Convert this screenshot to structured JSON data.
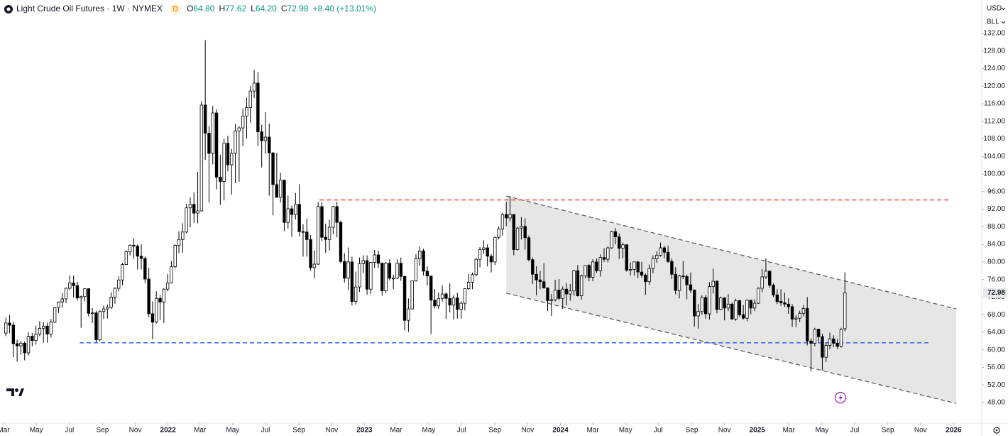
{
  "chart_data": {
    "type": "candlestick",
    "title": "Light Crude Oil Futures · 1W · NYMEX",
    "badge": "D",
    "ohlc": [
      {
        "key": "O",
        "value": "64.80"
      },
      {
        "key": "H",
        "value": "77.62"
      },
      {
        "key": "L",
        "value": "64.20"
      },
      {
        "key": "C",
        "value": "72.98"
      }
    ],
    "change": "+8.40 (+13.01%)",
    "currency": "USD",
    "unit": "BLL",
    "up_color": "#ffffff",
    "down_color": "#000000",
    "wick_color": "#000000",
    "open": [
      63.8,
      66.1,
      65.6,
      61.4,
      60.9,
      61.5,
      59.3,
      63.1,
      62.1,
      63.6,
      64.9,
      65.4,
      63.6,
      66.3,
      69.6,
      70.9,
      71.6,
      74.0,
      75.2,
      74.6,
      71.8,
      72.1,
      73.9,
      68.3,
      68.4,
      62.3,
      68.7,
      69.3,
      69.7,
      72.0,
      74.0,
      75.9,
      79.4,
      82.3,
      83.8,
      83.6,
      81.3,
      80.8,
      76.1,
      68.2,
      66.3,
      71.7,
      70.9,
      73.8,
      75.2,
      78.9,
      83.8,
      85.1,
      86.8,
      92.3,
      93.1,
      91.1,
      91.6,
      115.7,
      109.3,
      104.7,
      113.9,
      99.3,
      98.3,
      107.0,
      102.1,
      104.7,
      109.8,
      110.5,
      113.2,
      115.1,
      118.9,
      120.7,
      109.6,
      107.6,
      108.4,
      104.8,
      97.6,
      94.7,
      98.6,
      89.0,
      92.1,
      90.8,
      93.1,
      86.9,
      86.8,
      85.1,
      78.7,
      79.5,
      92.6,
      85.6,
      85.1,
      87.9,
      92.6,
      89.0,
      80.1,
      76.3,
      80.0,
      71.0,
      74.3,
      79.6,
      80.3,
      73.8,
      79.9,
      81.6,
      79.7,
      73.4,
      79.7,
      76.3,
      76.3,
      79.7,
      76.7,
      66.7,
      69.3,
      75.7,
      80.7,
      82.5,
      77.9,
      76.8,
      71.3,
      70.0,
      71.7,
      72.7,
      71.7,
      70.2,
      71.8,
      69.2,
      70.6,
      73.9,
      75.4,
      77.1,
      80.6,
      82.8,
      83.2,
      81.3,
      80.0,
      85.6,
      87.5,
      90.8,
      90.0,
      90.8,
      82.8,
      87.7,
      88.1,
      85.5,
      80.5,
      77.2,
      75.9,
      75.5,
      74.1,
      71.2,
      71.4,
      73.6,
      71.7,
      73.8,
      72.7,
      73.4,
      78.0,
      72.3,
      76.8,
      79.2,
      76.5,
      80.0,
      78.0,
      81.0,
      80.6,
      83.2,
      86.9,
      85.7,
      83.1,
      83.9,
      78.1,
      78.3,
      80.0,
      77.7,
      77.0,
      75.5,
      78.5,
      80.7,
      81.5,
      83.2,
      82.2,
      80.1,
      77.2,
      73.5,
      76.8,
      76.7,
      74.8,
      73.6,
      67.7,
      68.7,
      71.9,
      68.2,
      74.4,
      75.6,
      69.2,
      71.8,
      69.5,
      70.4,
      67.0,
      71.2,
      68.0,
      67.2,
      71.3,
      69.5,
      70.6,
      74.0,
      76.6,
      77.9,
      74.7,
      72.5,
      71.0,
      70.7,
      70.4,
      69.8,
      67.0,
      67.2,
      68.3,
      69.4,
      62.0,
      61.5,
      64.7,
      63.0,
      58.3,
      61.0,
      62.5,
      61.5,
      60.8,
      64.8
    ],
    "high": [
      67.3,
      67.9,
      66.4,
      62.3,
      62.0,
      61.9,
      64.0,
      63.8,
      65.5,
      66.5,
      66.4,
      66.2,
      67.0,
      69.8,
      71.0,
      72.9,
      74.2,
      76.9,
      76.9,
      75.5,
      72.3,
      74.0,
      74.0,
      69.5,
      68.9,
      69.0,
      70.1,
      70.3,
      73.1,
      74.2,
      76.7,
      79.8,
      82.6,
      84.0,
      85.4,
      84.0,
      84.0,
      81.2,
      78.7,
      71.0,
      73.3,
      72.5,
      74.0,
      77.2,
      80.2,
      84.0,
      87.0,
      88.8,
      93.2,
      94.7,
      95.8,
      100.5,
      116.6,
      130.5,
      110.9,
      115.5,
      114.7,
      104.4,
      108.0,
      108.7,
      105.7,
      111.4,
      110.9,
      114.9,
      117.4,
      120.0,
      123.7,
      123.2,
      111.2,
      114.1,
      111.5,
      105.0,
      104.8,
      100.3,
      98.7,
      95.1,
      92.8,
      95.7,
      97.7,
      88.6,
      89.9,
      86.1,
      82.6,
      93.6,
      93.6,
      88.7,
      89.6,
      92.8,
      93.7,
      89.4,
      82.0,
      83.3,
      81.2,
      77.8,
      81.0,
      81.5,
      81.5,
      80.0,
      82.7,
      82.6,
      79.9,
      80.0,
      80.6,
      77.1,
      80.6,
      81.0,
      76.9,
      71.7,
      75.7,
      81.8,
      83.5,
      83.0,
      79.0,
      76.8,
      73.8,
      73.0,
      74.7,
      73.1,
      75.1,
      72.4,
      73.0,
      71.0,
      74.0,
      77.3,
      77.6,
      80.9,
      83.4,
      84.9,
      84.0,
      81.8,
      85.8,
      88.1,
      91.2,
      93.7,
      95.0,
      90.8,
      88.0,
      90.2,
      89.9,
      86.0,
      81.0,
      79.0,
      78.0,
      79.7,
      74.2,
      72.7,
      75.9,
      76.1,
      74.4,
      75.2,
      75.0,
      78.2,
      79.3,
      77.1,
      79.3,
      79.5,
      80.6,
      80.8,
      81.7,
      83.1,
      83.5,
      87.1,
      87.7,
      86.5,
      84.4,
      84.0,
      79.9,
      80.1,
      80.3,
      80.0,
      77.4,
      79.4,
      81.5,
      82.4,
      84.4,
      83.7,
      83.7,
      80.8,
      78.8,
      77.1,
      80.2,
      77.1,
      77.6,
      73.8,
      70.4,
      72.4,
      72.5,
      75.4,
      78.5,
      75.8,
      72.1,
      72.0,
      72.7,
      70.8,
      71.6,
      71.4,
      70.2,
      71.5,
      71.3,
      71.5,
      74.2,
      78.4,
      80.8,
      78.0,
      75.1,
      73.8,
      73.8,
      73.0,
      71.7,
      70.4,
      67.9,
      68.9,
      70.2,
      72.0,
      62.6,
      65.0,
      64.8,
      63.7,
      61.5,
      63.9,
      63.3,
      62.5,
      65.0,
      77.62
    ],
    "low": [
      63.1,
      63.8,
      58.3,
      57.3,
      58.9,
      57.6,
      58.7,
      60.8,
      61.2,
      63.1,
      61.6,
      61.6,
      62.8,
      66.1,
      68.4,
      69.6,
      70.6,
      73.6,
      71.9,
      71.2,
      65.0,
      71.0,
      67.6,
      66.1,
      61.7,
      61.9,
      67.0,
      67.1,
      69.3,
      70.5,
      73.3,
      74.7,
      79.3,
      81.5,
      80.7,
      78.3,
      78.3,
      75.2,
      67.4,
      62.4,
      66.0,
      66.8,
      66.1,
      73.3,
      75.1,
      78.5,
      82.0,
      82.1,
      86.5,
      87.9,
      88.9,
      88.8,
      91.5,
      103.2,
      93.5,
      102.2,
      96.5,
      93.0,
      94.0,
      100.6,
      95.3,
      97.9,
      98.2,
      106.4,
      108.0,
      111.7,
      117.3,
      106.4,
      101.5,
      104.6,
      95.1,
      90.6,
      94.7,
      93.5,
      87.0,
      87.6,
      85.7,
      89.7,
      85.8,
      81.2,
      81.2,
      78.0,
      76.3,
      79.3,
      84.8,
      82.1,
      82.6,
      86.3,
      85.6,
      79.7,
      75.3,
      73.6,
      70.1,
      70.3,
      73.2,
      77.5,
      72.5,
      72.7,
      78.6,
      78.6,
      72.3,
      72.9,
      75.8,
      73.8,
      76.1,
      75.7,
      64.4,
      64.1,
      69.2,
      75.5,
      79.1,
      76.9,
      74.6,
      63.6,
      69.4,
      69.3,
      71.0,
      67.0,
      68.5,
      66.9,
      67.1,
      67.1,
      69.0,
      73.6,
      73.8,
      76.7,
      78.8,
      81.8,
      79.0,
      77.6,
      79.3,
      85.1,
      86.0,
      88.1,
      89.2,
      81.5,
      82.6,
      85.1,
      82.8,
      80.1,
      75.0,
      72.4,
      73.8,
      73.9,
      68.8,
      67.7,
      71.0,
      71.3,
      69.3,
      70.1,
      71.2,
      72.3,
      72.1,
      71.4,
      76.2,
      75.6,
      75.6,
      77.5,
      76.7,
      80.0,
      79.9,
      83.0,
      84.0,
      80.7,
      80.8,
      77.8,
      76.9,
      76.9,
      76.3,
      76.4,
      72.5,
      74.8,
      77.4,
      79.8,
      81.2,
      80.8,
      79.8,
      76.1,
      72.6,
      71.7,
      76.1,
      71.5,
      72.9,
      65.3,
      64.8,
      68.0,
      67.1,
      66.9,
      72.8,
      68.3,
      69.0,
      66.7,
      68.8,
      66.9,
      66.6,
      67.5,
      66.9,
      66.5,
      68.1,
      68.8,
      70.4,
      73.1,
      76.1,
      74.1,
      72.0,
      70.4,
      70.0,
      69.8,
      68.2,
      65.2,
      65.2,
      66.3,
      67.6,
      61.0,
      55.1,
      60.8,
      61.8,
      55.3,
      57.2,
      60.1,
      60.6,
      60.2,
      60.5,
      64.2
    ],
    "close": [
      66.1,
      65.6,
      61.4,
      60.9,
      61.5,
      59.3,
      63.1,
      62.1,
      63.6,
      64.9,
      65.4,
      63.6,
      66.3,
      69.6,
      70.9,
      71.6,
      74.0,
      75.2,
      74.6,
      71.8,
      72.1,
      73.9,
      68.3,
      68.4,
      62.3,
      68.7,
      69.3,
      69.7,
      72.0,
      74.0,
      75.9,
      79.4,
      82.3,
      83.8,
      83.6,
      81.3,
      80.8,
      76.1,
      68.2,
      66.3,
      71.7,
      70.9,
      73.8,
      75.2,
      78.9,
      83.8,
      85.1,
      86.8,
      92.3,
      93.1,
      91.1,
      91.6,
      115.7,
      109.3,
      104.7,
      113.9,
      99.3,
      98.3,
      107.0,
      102.1,
      104.7,
      109.8,
      110.5,
      113.2,
      115.1,
      118.9,
      120.7,
      109.6,
      107.6,
      108.4,
      104.8,
      97.6,
      94.7,
      98.6,
      89.0,
      92.1,
      90.8,
      93.1,
      86.9,
      86.8,
      85.1,
      78.7,
      79.5,
      92.6,
      85.6,
      85.1,
      87.9,
      92.6,
      89.0,
      80.1,
      76.3,
      80.0,
      71.0,
      74.3,
      79.6,
      80.3,
      73.8,
      79.9,
      81.6,
      79.7,
      73.4,
      79.7,
      76.3,
      76.3,
      79.7,
      76.7,
      66.7,
      69.3,
      75.7,
      80.7,
      82.5,
      77.9,
      76.8,
      71.3,
      70.0,
      71.7,
      72.7,
      71.7,
      70.2,
      71.8,
      69.2,
      70.6,
      73.9,
      75.4,
      77.1,
      80.6,
      82.8,
      83.2,
      81.3,
      80.0,
      85.6,
      87.5,
      90.8,
      90.0,
      90.8,
      82.8,
      87.7,
      88.1,
      85.5,
      80.5,
      77.2,
      75.9,
      75.5,
      74.1,
      71.2,
      71.4,
      73.6,
      71.7,
      73.8,
      72.7,
      73.4,
      78.0,
      72.3,
      76.8,
      79.2,
      76.5,
      80.0,
      78.0,
      81.0,
      80.6,
      83.2,
      86.9,
      85.7,
      83.1,
      83.9,
      78.1,
      78.3,
      80.0,
      77.7,
      77.0,
      75.5,
      78.5,
      80.7,
      81.5,
      83.2,
      82.2,
      80.1,
      77.2,
      73.5,
      76.8,
      76.7,
      74.8,
      73.6,
      67.7,
      68.7,
      71.9,
      68.2,
      74.4,
      75.6,
      69.2,
      71.8,
      69.5,
      70.4,
      67.0,
      71.2,
      68.0,
      67.2,
      71.3,
      69.5,
      70.6,
      74.0,
      76.6,
      77.9,
      74.7,
      72.5,
      71.0,
      70.7,
      70.4,
      69.8,
      67.0,
      67.2,
      68.3,
      69.4,
      62.0,
      61.5,
      64.7,
      63.0,
      58.3,
      61.0,
      62.5,
      61.5,
      60.8,
      64.6,
      72.98
    ],
    "xlim": [
      -1.55,
      258.8
    ],
    "xticks": [
      {
        "value": -0.6,
        "label": "Mar"
      },
      {
        "value": 8.1,
        "label": "May"
      },
      {
        "value": 16.9,
        "label": "Jul"
      },
      {
        "value": 25.7,
        "label": "Sep"
      },
      {
        "value": 34.4,
        "label": "Nov"
      },
      {
        "value": 43.1,
        "label": "2022"
      },
      {
        "value": 51.6,
        "label": "Mar"
      },
      {
        "value": 60.3,
        "label": "May"
      },
      {
        "value": 69.0,
        "label": "Jul"
      },
      {
        "value": 77.9,
        "label": "Sep"
      },
      {
        "value": 86.6,
        "label": "Nov"
      },
      {
        "value": 95.3,
        "label": "2023"
      },
      {
        "value": 103.7,
        "label": "Mar"
      },
      {
        "value": 112.4,
        "label": "May"
      },
      {
        "value": 121.1,
        "label": "Jul"
      },
      {
        "value": 130.0,
        "label": "Sep"
      },
      {
        "value": 138.7,
        "label": "Nov"
      },
      {
        "value": 147.4,
        "label": "2024"
      },
      {
        "value": 156.0,
        "label": "Mar"
      },
      {
        "value": 164.7,
        "label": "May"
      },
      {
        "value": 173.4,
        "label": "Jul"
      },
      {
        "value": 182.3,
        "label": "Sep"
      },
      {
        "value": 191.0,
        "label": "Nov"
      },
      {
        "value": 199.7,
        "label": "2025"
      },
      {
        "value": 208.1,
        "label": "Mar"
      },
      {
        "value": 216.9,
        "label": "May"
      },
      {
        "value": 225.6,
        "label": "Jul"
      },
      {
        "value": 234.4,
        "label": "Sep"
      },
      {
        "value": 243.1,
        "label": "Nov"
      },
      {
        "value": 251.9,
        "label": "2026"
      }
    ],
    "ylim": [
      43.3,
      139.6
    ],
    "yticks": [
      {
        "value": 48,
        "label": "48.00"
      },
      {
        "value": 52,
        "label": "52.00"
      },
      {
        "value": 56,
        "label": "56.00"
      },
      {
        "value": 60,
        "label": "60.00"
      },
      {
        "value": 64,
        "label": "64.00"
      },
      {
        "value": 68,
        "label": "68.00"
      },
      {
        "value": 72,
        "label": "72.00"
      },
      {
        "value": 76,
        "label": "76.00"
      },
      {
        "value": 80,
        "label": "80.00"
      },
      {
        "value": 84,
        "label": "84.00"
      },
      {
        "value": 88,
        "label": "88.00"
      },
      {
        "value": 92,
        "label": "92.00"
      },
      {
        "value": 96,
        "label": "96.00"
      },
      {
        "value": 100,
        "label": "100.00"
      },
      {
        "value": 104,
        "label": "104.00"
      },
      {
        "value": 108,
        "label": "108.00"
      },
      {
        "value": 112,
        "label": "112.00"
      },
      {
        "value": 116,
        "label": "116.00"
      },
      {
        "value": 120,
        "label": "120.00"
      },
      {
        "value": 124,
        "label": "124.00"
      },
      {
        "value": 128,
        "label": "128.00"
      },
      {
        "value": 132,
        "label": "132.00"
      }
    ],
    "grid": false,
    "last_price": {
      "value": 72.98,
      "label": "72.98"
    },
    "levels": [
      {
        "value": 94.1,
        "from": 83.4,
        "to": 251.3,
        "color": "#f23645"
      },
      {
        "value": 61.6,
        "from": 19.6,
        "to": 245.6,
        "color": "#2962ff"
      }
    ],
    "channel": {
      "upper": [
        [
          133,
          95
        ],
        [
          252.6,
          69.3
        ]
      ],
      "lower": [
        [
          133,
          72.9
        ],
        [
          252.6,
          47.8
        ]
      ],
      "color": "#555555"
    }
  }
}
